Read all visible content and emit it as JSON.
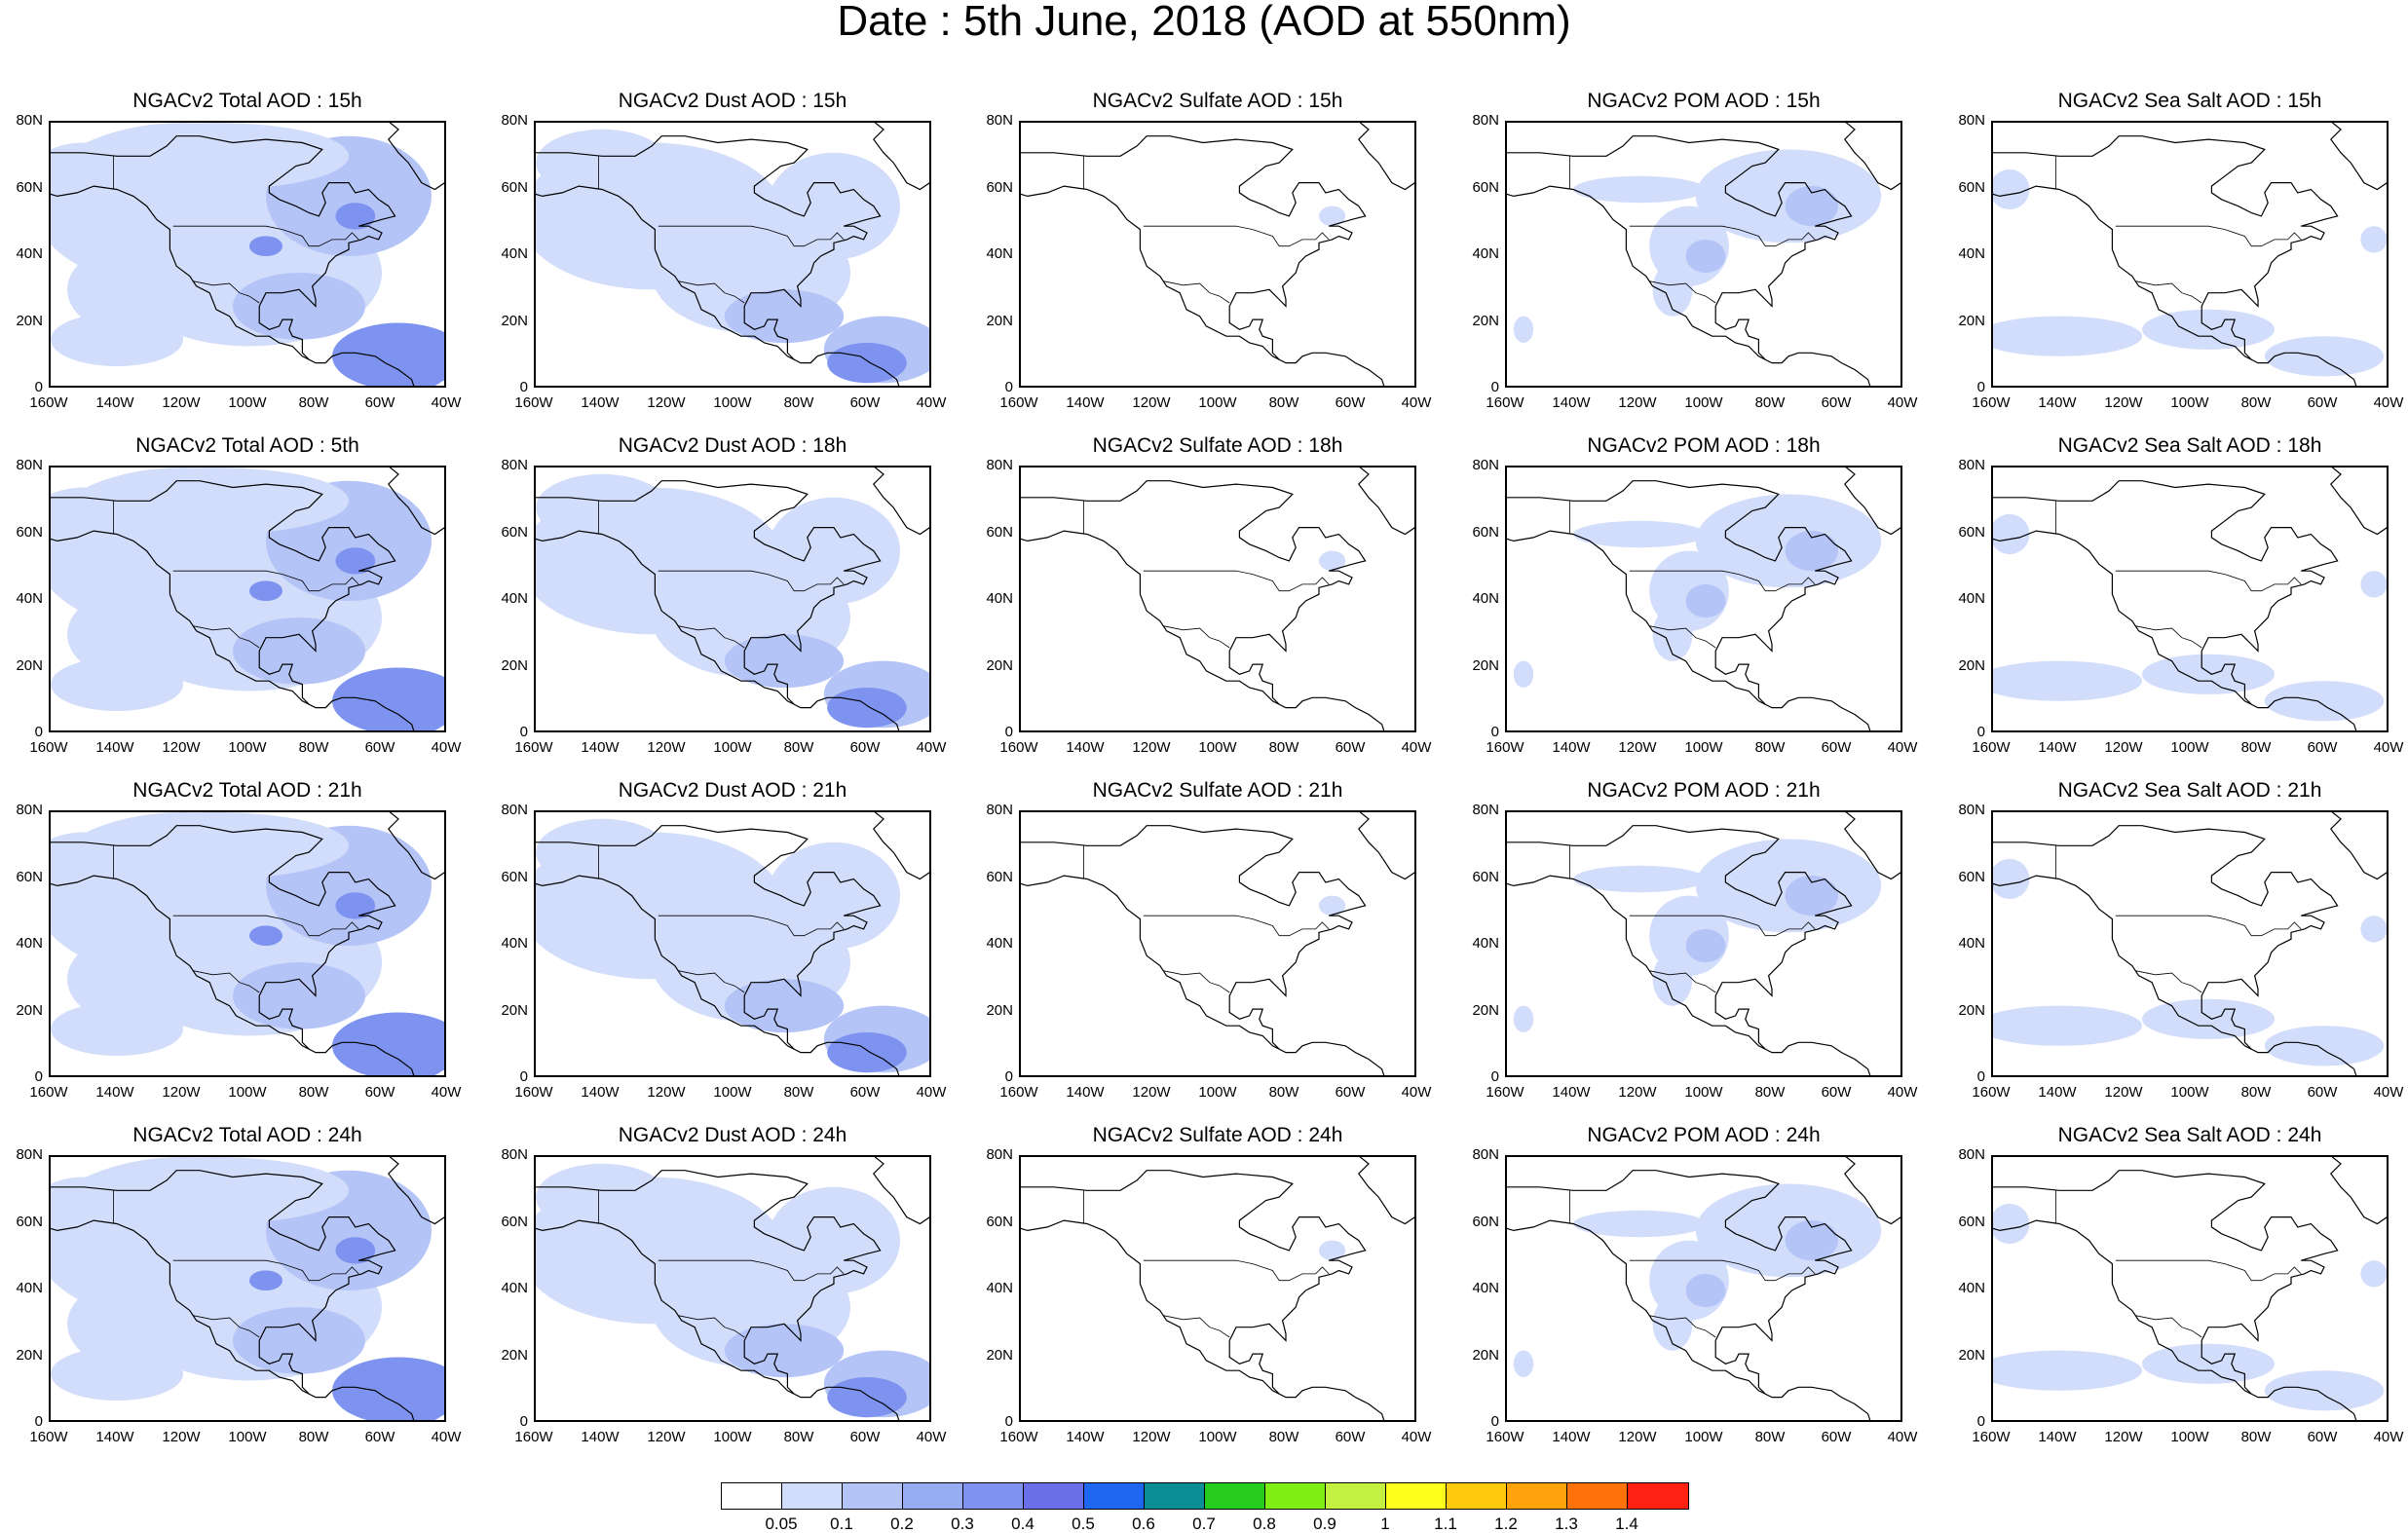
{
  "title": "Date : 5th June, 2018 (AOD at 550nm)",
  "axes": {
    "y_ticks": [
      "80N",
      "60N",
      "40N",
      "20N",
      "0"
    ],
    "x_ticks": [
      "160W",
      "140W",
      "120W",
      "100W",
      "80W",
      "60W",
      "40W"
    ]
  },
  "panels": [
    [
      "NGACv2 Total AOD : 15h",
      "NGACv2 Dust AOD : 15h",
      "NGACv2 Sulfate AOD : 15h",
      "NGACv2 POM AOD : 15h",
      "NGACv2 Sea Salt AOD : 15h"
    ],
    [
      "NGACv2 Total AOD : 5th",
      "NGACv2 Dust AOD : 18h",
      "NGACv2 Sulfate AOD : 18h",
      "NGACv2 POM AOD : 18h",
      "NGACv2 Sea Salt AOD : 18h"
    ],
    [
      "NGACv2 Total AOD : 21h",
      "NGACv2 Dust AOD : 21h",
      "NGACv2 Sulfate AOD : 21h",
      "NGACv2 POM AOD : 21h",
      "NGACv2 Sea Salt AOD : 21h"
    ],
    [
      "NGACv2 Total AOD : 24h",
      "NGACv2 Dust AOD : 24h",
      "NGACv2 Sulfate AOD : 24h",
      "NGACv2 POM AOD : 24h",
      "NGACv2 Sea Salt  AOD : 24h"
    ]
  ],
  "colorbar": {
    "labels": [
      "0.05",
      "0.1",
      "0.2",
      "0.3",
      "0.4",
      "0.5",
      "0.6",
      "0.7",
      "0.8",
      "0.9",
      "1",
      "1.1",
      "1.2",
      "1.3",
      "1.4"
    ],
    "colors": [
      "#ffffff",
      "#d2dcfb",
      "#b4c4f7",
      "#96acf3",
      "#7d93ef",
      "#6a6ee8",
      "#1f66f0",
      "#0b8f96",
      "#26cc1e",
      "#7fee15",
      "#c4f141",
      "#ffff1e",
      "#ffca0e",
      "#ffa20c",
      "#ff7109",
      "#ff2113"
    ]
  },
  "map_colors": {
    "land_outline": "#000000",
    "aod_low": "#d2dcfb",
    "aod_mid": "#b4c4f7",
    "aod_high": "#7d93ef"
  }
}
